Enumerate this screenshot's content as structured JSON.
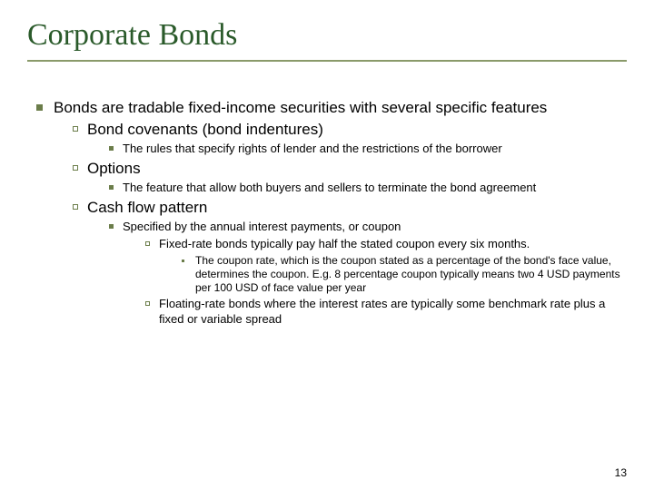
{
  "title": "Corporate Bonds",
  "pageNumber": "13",
  "colors": {
    "title": "#2a5a2a",
    "bullet": "#6b7d4a",
    "underline": "#8a9a6a",
    "text": "#000000",
    "background": "#ffffff"
  },
  "typography": {
    "title_font": "Times New Roman",
    "title_size_pt": 26,
    "body_font": "Arial",
    "body_size_pt": 13,
    "sub_size_pt": 10
  },
  "content": {
    "main": "Bonds are tradable fixed-income securities with several specific features",
    "items": [
      {
        "label": "Bond covenants (bond indentures)",
        "detail": "The rules that specify rights of lender and the restrictions of the borrower"
      },
      {
        "label": "Options",
        "detail": "The feature that allow both buyers and sellers to terminate the bond agreement"
      },
      {
        "label": "Cash flow pattern",
        "spec": "Specified by the annual interest payments, or coupon",
        "sub": [
          {
            "text": "Fixed-rate bonds typically pay half the stated coupon every six months.",
            "note": "The coupon rate, which is  the coupon stated as a percentage of the bond's face value, determines the coupon. E.g. 8 percentage coupon typically means two 4 USD payments per 100 USD of face value per year"
          },
          {
            "text": "Floating-rate bonds where the interest rates are typically some benchmark rate plus a fixed or variable spread"
          }
        ]
      }
    ]
  }
}
